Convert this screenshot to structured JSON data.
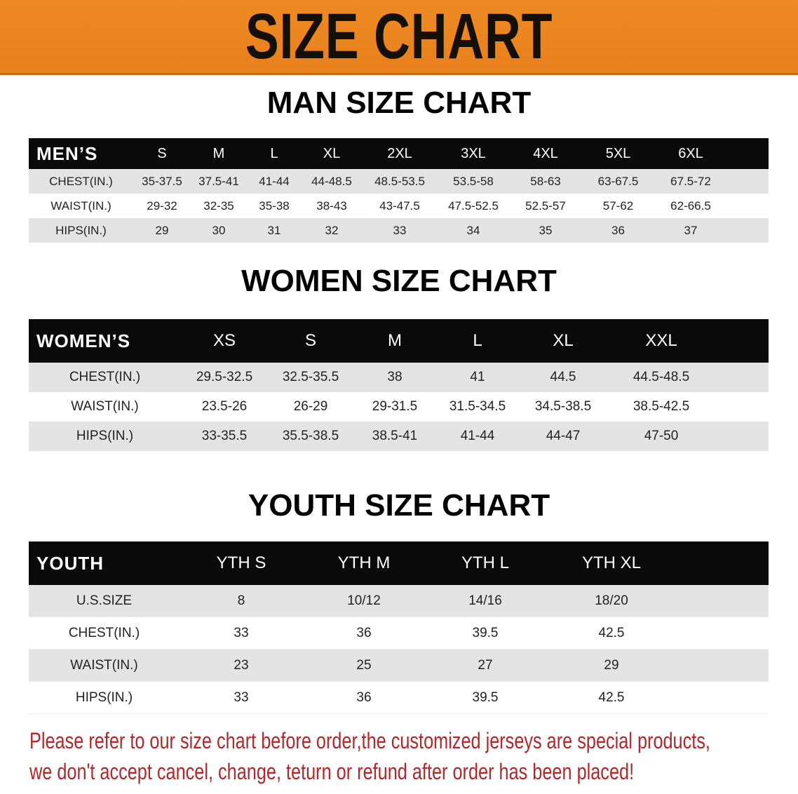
{
  "banner": {
    "title": "SIZE CHART",
    "color": "#eb851f"
  },
  "men": {
    "heading": "MAN SIZE CHART",
    "header": [
      "MEN’S",
      "S",
      "M",
      "L",
      "XL",
      "2XL",
      "3XL",
      "4XL",
      "5XL",
      "6XL"
    ],
    "rows": [
      [
        "CHEST(IN.)",
        "35-37.5",
        "37.5-41",
        "41-44",
        "44-48.5",
        "48.5-53.5",
        "53.5-58",
        "58-63",
        "63-67.5",
        "67.5-72"
      ],
      [
        "WAIST(IN.)",
        "29-32",
        "32-35",
        "35-38",
        "38-43",
        "43-47.5",
        "47.5-52.5",
        "52.5-57",
        "57-62",
        "62-66.5"
      ],
      [
        "HIPS(IN.)",
        "29",
        "30",
        "31",
        "32",
        "33",
        "34",
        "35",
        "36",
        "37"
      ]
    ]
  },
  "women": {
    "heading": "WOMEN SIZE CHART",
    "header": [
      "WOMEN’S",
      "XS",
      "S",
      "M",
      "L",
      "XL",
      "XXL"
    ],
    "rows": [
      [
        "CHEST(IN.)",
        "29.5-32.5",
        "32.5-35.5",
        "38",
        "41",
        "44.5",
        "44.5-48.5"
      ],
      [
        "WAIST(IN.)",
        "23.5-26",
        "26-29",
        "29-31.5",
        "31.5-34.5",
        "34.5-38.5",
        "38.5-42.5"
      ],
      [
        "HIPS(IN.)",
        "33-35.5",
        "35.5-38.5",
        "38.5-41",
        "41-44",
        "44-47",
        "47-50"
      ]
    ]
  },
  "youth": {
    "heading": "YOUTH SIZE CHART",
    "header": [
      "YOUTH",
      "YTH S",
      "YTH M",
      "YTH L",
      "YTH XL"
    ],
    "rows": [
      [
        "U.S.SIZE",
        "8",
        "10/12",
        "14/16",
        "18/20"
      ],
      [
        "CHEST(IN.)",
        "33",
        "36",
        "39.5",
        "42.5"
      ],
      [
        "WAIST(IN.)",
        "23",
        "25",
        "27",
        "29"
      ],
      [
        "HIPS(IN.)",
        "33",
        "36",
        "39.5",
        "42.5"
      ]
    ]
  },
  "note": {
    "line1": "Please refer to our size chart before order,the customized jerseys are special products,",
    "line2": "we don't accept cancel, change, teturn or refund after order has been placed!",
    "color": "#b3272a"
  }
}
